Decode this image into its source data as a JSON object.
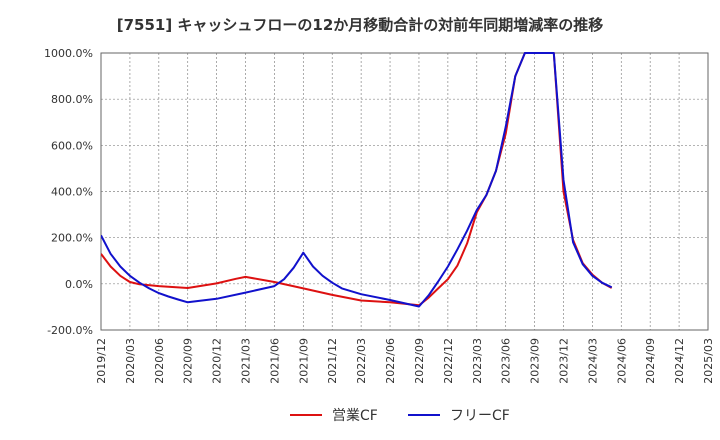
{
  "chart_data": {
    "type": "line",
    "title": "[7551]  キャッシュフローの12か月移動合計の対前年同期増減率の推移",
    "xlabel": "",
    "ylabel": "",
    "ylim": [
      -200,
      1000
    ],
    "y_ticks": [
      -200,
      0,
      200,
      400,
      600,
      800,
      1000
    ],
    "y_tick_labels": [
      "-200.0%",
      "0.0%",
      "200.0%",
      "400.0%",
      "600.0%",
      "800.0%",
      "1000.0%"
    ],
    "x_tick_labels": [
      "2019/12",
      "2020/03",
      "2020/06",
      "2020/09",
      "2020/12",
      "2021/03",
      "2021/06",
      "2021/09",
      "2021/12",
      "2022/03",
      "2022/06",
      "2022/09",
      "2022/12",
      "2023/03",
      "2023/06",
      "2023/09",
      "2023/12",
      "2024/03",
      "2024/06",
      "2024/09",
      "2024/12",
      "2025/03"
    ],
    "grid": true,
    "legend_position": "bottom",
    "series": [
      {
        "name": "営業CF",
        "color": "#dd1111",
        "points": [
          [
            "2019/12",
            130
          ],
          [
            "2020/01",
            75
          ],
          [
            "2020/02",
            35
          ],
          [
            "2020/03",
            8
          ],
          [
            "2020/04",
            -2
          ],
          [
            "2020/06",
            -10
          ],
          [
            "2020/09",
            -18
          ],
          [
            "2020/12",
            2
          ],
          [
            "2021/02",
            22
          ],
          [
            "2021/03",
            30
          ],
          [
            "2021/06",
            8
          ],
          [
            "2021/09",
            -20
          ],
          [
            "2021/12",
            -48
          ],
          [
            "2022/03",
            -72
          ],
          [
            "2022/06",
            -80
          ],
          [
            "2022/09",
            -93
          ],
          [
            "2022/10",
            -60
          ],
          [
            "2022/11",
            -20
          ],
          [
            "2022/12",
            20
          ],
          [
            "2023/01",
            80
          ],
          [
            "2023/02",
            175
          ],
          [
            "2023/03",
            310
          ],
          [
            "2023/04",
            385
          ],
          [
            "2023/05",
            490
          ],
          [
            "2023/06",
            650
          ],
          [
            "2023/07",
            900
          ],
          [
            "2023/08",
            1000
          ],
          [
            "2023/11",
            1000
          ],
          [
            "2023/12",
            400
          ],
          [
            "2024/01",
            190
          ],
          [
            "2024/02",
            90
          ],
          [
            "2024/03",
            40
          ],
          [
            "2024/04",
            5
          ],
          [
            "2024/05",
            -18
          ]
        ]
      },
      {
        "name": "フリーCF",
        "color": "#1111cc",
        "points": [
          [
            "2019/12",
            210
          ],
          [
            "2020/01",
            130
          ],
          [
            "2020/02",
            75
          ],
          [
            "2020/03",
            35
          ],
          [
            "2020/04",
            5
          ],
          [
            "2020/05",
            -20
          ],
          [
            "2020/06",
            -40
          ],
          [
            "2020/07",
            -55
          ],
          [
            "2020/08",
            -68
          ],
          [
            "2020/09",
            -80
          ],
          [
            "2020/12",
            -65
          ],
          [
            "2021/03",
            -38
          ],
          [
            "2021/06",
            -10
          ],
          [
            "2021/07",
            20
          ],
          [
            "2021/08",
            70
          ],
          [
            "2021/09",
            135
          ],
          [
            "2021/10",
            75
          ],
          [
            "2021/11",
            35
          ],
          [
            "2021/12",
            5
          ],
          [
            "2022/01",
            -20
          ],
          [
            "2022/03",
            -45
          ],
          [
            "2022/06",
            -70
          ],
          [
            "2022/09",
            -98
          ],
          [
            "2022/10",
            -50
          ],
          [
            "2022/11",
            10
          ],
          [
            "2022/12",
            75
          ],
          [
            "2023/01",
            150
          ],
          [
            "2023/02",
            230
          ],
          [
            "2023/03",
            320
          ],
          [
            "2023/04",
            385
          ],
          [
            "2023/05",
            490
          ],
          [
            "2023/06",
            680
          ],
          [
            "2023/07",
            900
          ],
          [
            "2023/08",
            1000
          ],
          [
            "2023/11",
            1000
          ],
          [
            "2023/12",
            450
          ],
          [
            "2024/01",
            180
          ],
          [
            "2024/02",
            85
          ],
          [
            "2024/03",
            35
          ],
          [
            "2024/04",
            5
          ],
          [
            "2024/05",
            -15
          ]
        ]
      }
    ]
  }
}
